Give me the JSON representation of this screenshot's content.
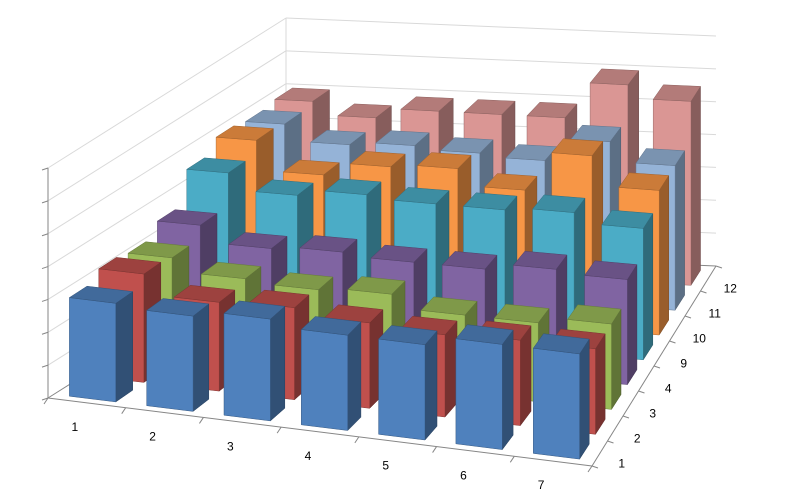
{
  "chart_data": {
    "type": "bar",
    "variant": "3d-column",
    "title": "",
    "xlabel": "",
    "ylabel": "",
    "zlabel": "",
    "grid": true,
    "legend": "none",
    "categories": [
      "1",
      "2",
      "3",
      "4",
      "5",
      "6",
      "7"
    ],
    "depth_labels": [
      "1",
      "2",
      "3",
      "4",
      "9",
      "10",
      "11",
      "12"
    ],
    "series": [
      {
        "label": "1",
        "color": "#4F81BD",
        "values": [
          3.0,
          2.9,
          3.1,
          2.9,
          2.9,
          3.2,
          3.2
        ]
      },
      {
        "label": "2",
        "color": "#C0504D",
        "values": [
          3.3,
          2.7,
          2.8,
          2.6,
          2.5,
          2.6,
          2.6
        ]
      },
      {
        "label": "3",
        "color": "#9BBB59",
        "values": [
          3.2,
          2.8,
          2.7,
          2.8,
          2.4,
          2.4,
          2.6
        ]
      },
      {
        "label": "4",
        "color": "#8064A2",
        "values": [
          3.6,
          3.1,
          3.2,
          3.1,
          3.1,
          3.3,
          3.2
        ]
      },
      {
        "label": "9",
        "color": "#4BACC6",
        "values": [
          4.6,
          4.1,
          4.3,
          4.2,
          4.2,
          4.3,
          4.0
        ]
      },
      {
        "label": "10",
        "color": "#F79646",
        "values": [
          5.0,
          4.1,
          4.5,
          4.6,
          4.1,
          5.3,
          4.4
        ]
      },
      {
        "label": "11",
        "color": "#95B3D7",
        "values": [
          4.9,
          4.4,
          4.5,
          4.4,
          4.3,
          5.0,
          4.4
        ]
      },
      {
        "label": "12",
        "color": "#DA9694",
        "values": [
          5.0,
          4.6,
          4.9,
          4.9,
          4.9,
          6.0,
          5.6
        ]
      }
    ]
  }
}
